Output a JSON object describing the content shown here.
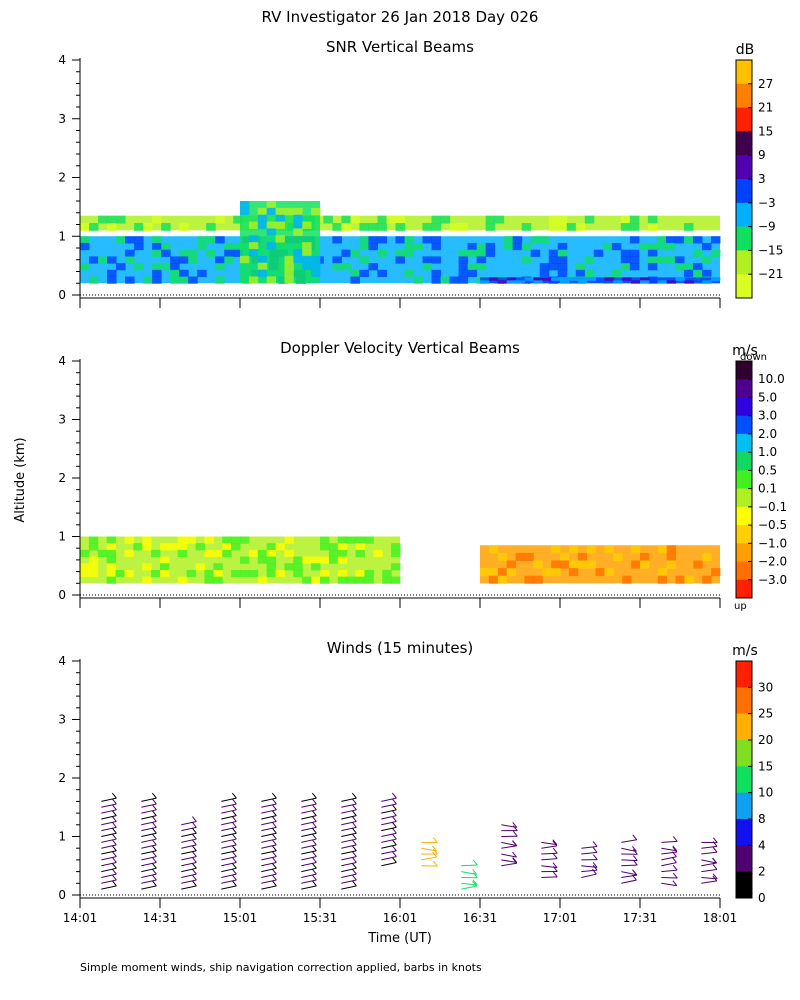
{
  "page_title": "RV Investigator  26 Jan 2018 Day 026",
  "ylabel": "Altitude (km)",
  "xlabel": "Time (UT)",
  "footer": "Simple moment winds, ship navigation correction applied, barbs in knots",
  "x_ticks": [
    "14:01",
    "14:31",
    "15:01",
    "15:31",
    "16:01",
    "16:31",
    "17:01",
    "17:31",
    "18:01"
  ],
  "y_ticks": [
    "0",
    "1",
    "2",
    "3",
    "4"
  ],
  "chart_data": [
    {
      "type": "heatmap",
      "title": "SNR Vertical Beams",
      "unit": "dB",
      "xlabel": "",
      "ylabel": "Altitude (km)",
      "x_range": [
        "14:01",
        "18:01"
      ],
      "ylim": [
        0,
        4
      ],
      "colorbar": {
        "labels": [
          "27",
          "21",
          "15",
          "9",
          "3",
          "−3",
          "−9",
          "−15",
          "−21"
        ],
        "colors": [
          "#ffc000",
          "#ff8000",
          "#ff2000",
          "#400050",
          "#5000b0",
          "#0040ff",
          "#00b0ff",
          "#10e060",
          "#b0f020",
          "#d8ff20"
        ]
      },
      "regions": [
        {
          "desc": "echo layer",
          "x_start": "14:01",
          "x_end": "18:01",
          "alt_km": [
            0.2,
            1.0
          ],
          "snr_db": -9
        },
        {
          "desc": "thin layer",
          "x_start": "14:01",
          "x_end": "18:01",
          "alt_km": [
            1.1,
            1.35
          ],
          "snr_db": -21
        },
        {
          "desc": "strong near-surface echo",
          "x_start": "16:31",
          "x_end": "18:01",
          "alt_km": [
            0.2,
            0.3
          ],
          "snr_db": -3
        },
        {
          "desc": "cloud peak",
          "x_start": "15:01",
          "x_end": "15:31",
          "alt_km": [
            0.2,
            1.6
          ],
          "snr_db": -15
        }
      ]
    },
    {
      "type": "heatmap",
      "title": "Doppler Velocity Vertical Beams",
      "unit": "m/s",
      "xlabel": "",
      "ylabel": "Altitude (km)",
      "x_range": [
        "14:01",
        "18:01"
      ],
      "ylim": [
        0,
        4
      ],
      "colorbar": {
        "top_label": "down",
        "bottom_label": "up",
        "labels": [
          "10.0",
          "5.0",
          "3.0",
          "2.0",
          "1.0",
          "0.5",
          "0.1",
          "−0.1",
          "−0.5",
          "−1.0",
          "−2.0",
          "−3.0"
        ],
        "colors": [
          "#300030",
          "#500090",
          "#3000e0",
          "#0050ff",
          "#00c0f0",
          "#10d860",
          "#40f020",
          "#b0f020",
          "#ffff00",
          "#ffd000",
          "#ffa000",
          "#ff7000",
          "#ff2000"
        ]
      },
      "regions": [
        {
          "desc": "weak motion",
          "x_start": "14:01",
          "x_end": "16:01",
          "alt_km": [
            0.2,
            1.0
          ],
          "velocity": 0.1
        },
        {
          "desc": "updraft",
          "x_start": "16:31",
          "x_end": "18:01",
          "alt_km": [
            0.2,
            0.85
          ],
          "velocity": -1.0
        }
      ]
    },
    {
      "type": "scatter",
      "title": "Winds (15 minutes)",
      "unit": "m/s",
      "xlabel": "Time (UT)",
      "ylabel": "Altitude (km)",
      "x_range": [
        "14:01",
        "18:01"
      ],
      "ylim": [
        0,
        4
      ],
      "colorbar": {
        "labels": [
          "30",
          "25",
          "20",
          "15",
          "10",
          "8",
          "4",
          "2",
          "0"
        ],
        "colors": [
          "#ff2000",
          "#ff7000",
          "#ffb000",
          "#80e020",
          "#10e060",
          "#10a0f0",
          "#1010f0",
          "#500070",
          "#000000"
        ]
      },
      "profiles": [
        {
          "time": "14:09",
          "alt_km": [
            0.1,
            1.6
          ]
        },
        {
          "time": "14:24",
          "alt_km": [
            0.1,
            1.6
          ]
        },
        {
          "time": "14:39",
          "alt_km": [
            0.1,
            1.2
          ]
        },
        {
          "time": "14:54",
          "alt_km": [
            0.1,
            1.6
          ]
        },
        {
          "time": "15:09",
          "alt_km": [
            0.1,
            1.6
          ]
        },
        {
          "time": "15:24",
          "alt_km": [
            0.1,
            1.6
          ]
        },
        {
          "time": "15:39",
          "alt_km": [
            0.1,
            1.6
          ]
        },
        {
          "time": "15:54",
          "alt_km": [
            0.5,
            1.6
          ]
        },
        {
          "time": "16:09",
          "alt_km": [
            0.5,
            0.9
          ]
        },
        {
          "time": "16:24",
          "alt_km": [
            0.1,
            0.5
          ]
        },
        {
          "time": "16:39",
          "alt_km": [
            0.5,
            1.2
          ]
        },
        {
          "time": "16:54",
          "alt_km": [
            0.3,
            0.9
          ]
        },
        {
          "time": "17:09",
          "alt_km": [
            0.3,
            0.8
          ]
        },
        {
          "time": "17:24",
          "alt_km": [
            0.2,
            0.9
          ]
        },
        {
          "time": "17:39",
          "alt_km": [
            0.2,
            0.9
          ]
        },
        {
          "time": "17:54",
          "alt_km": [
            0.2,
            0.9
          ]
        }
      ]
    }
  ]
}
